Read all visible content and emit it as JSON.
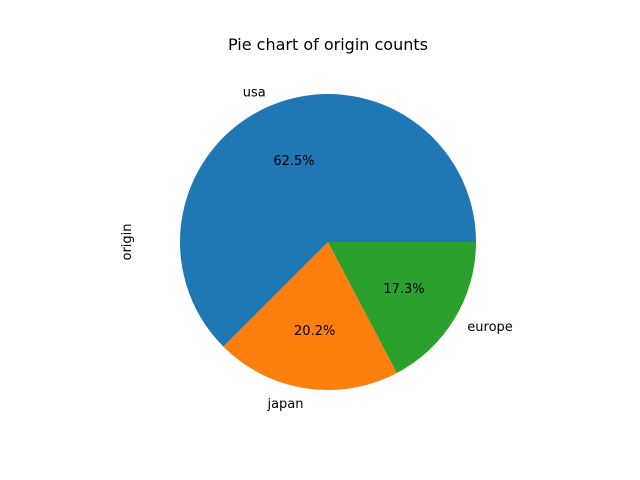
{
  "chart_data": {
    "type": "pie",
    "title": "Pie chart of origin counts",
    "ylabel": "origin",
    "categories": [
      "usa",
      "japan",
      "europe"
    ],
    "values": [
      62.5,
      20.2,
      17.3
    ],
    "value_labels": [
      "62.5%",
      "20.2%",
      "17.3%"
    ],
    "colors": [
      "#1f77b4",
      "#ff7f0e",
      "#2ca02c"
    ],
    "start_angle_deg": 0,
    "direction": "counterclockwise"
  }
}
